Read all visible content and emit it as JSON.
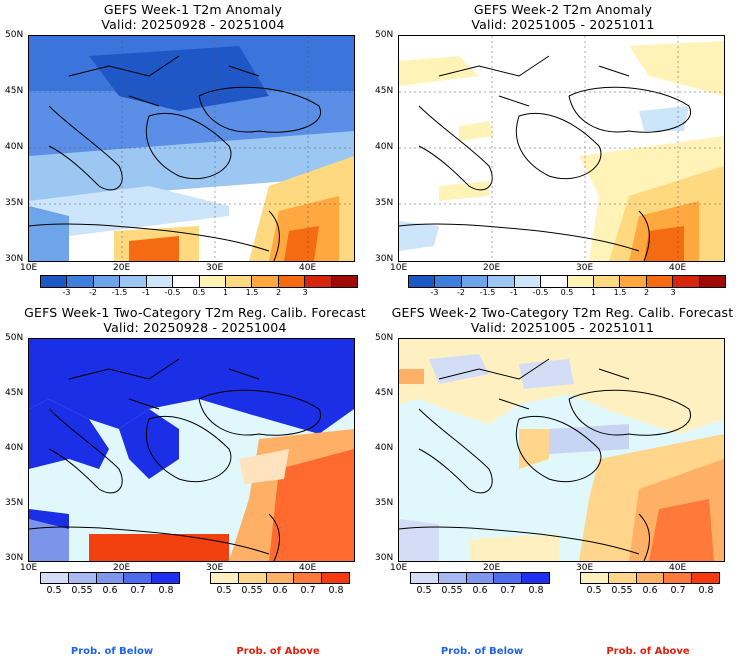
{
  "panels": [
    {
      "title": "GEFS Week-1 T2m Anomaly",
      "valid": "Valid: 20250928 - 20251004"
    },
    {
      "title": "GEFS Week-2 T2m Anomaly",
      "valid": "Valid: 20251005 - 20251011"
    },
    {
      "title": "GEFS Week-1 Two-Category T2m Reg. Calib. Forecast",
      "valid": "Valid: 20250928 - 20251004"
    },
    {
      "title": "GEFS Week-2 Two-Category T2m Reg. Calib. Forecast",
      "valid": "Valid: 20251005 - 20251011"
    }
  ],
  "axes": {
    "lat_labels": [
      "50N",
      "45N",
      "40N",
      "35N",
      "30N"
    ],
    "lon_labels": [
      "10E",
      "20E",
      "30E",
      "40E"
    ]
  },
  "anomaly_scale": {
    "labels": [
      "-3",
      "-2",
      "-1.5",
      "-1",
      "-0.5",
      "0.5",
      "1",
      "1.5",
      "2",
      "3"
    ],
    "colors": [
      "#1c57c4",
      "#3f7fdc",
      "#6ea4ea",
      "#9cc7f3",
      "#cde5fa",
      "#ffffff",
      "#fff3b8",
      "#ffd980",
      "#ffa83f",
      "#f46b12",
      "#d7260f",
      "#9e0a06"
    ]
  },
  "prob_scale": {
    "labels": [
      "0.5",
      "0.55",
      "0.6",
      "0.7",
      "0.8"
    ],
    "below_colors": [
      "#d3ddf6",
      "#a6b9f0",
      "#7e97ec",
      "#4f6cef",
      "#1e2ff0"
    ],
    "above_colors": [
      "#fff0c2",
      "#ffd68b",
      "#ffb067",
      "#ff7a3a",
      "#f53a0f"
    ]
  },
  "legend": {
    "below": "Prob. of Below",
    "above": "Prob. of Above",
    "below_color": "#1e63e6",
    "above_color": "#e11f0d"
  }
}
